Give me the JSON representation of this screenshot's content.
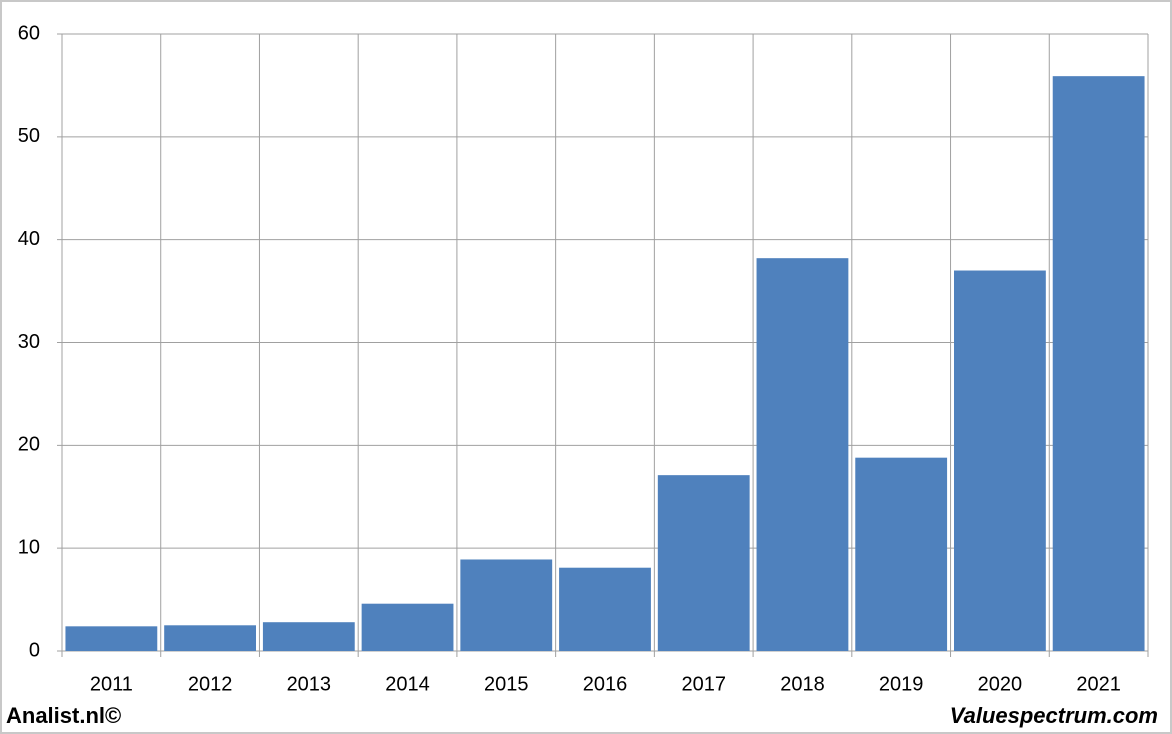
{
  "chart_data": {
    "type": "bar",
    "categories": [
      "2011",
      "2012",
      "2013",
      "2014",
      "2015",
      "2016",
      "2017",
      "2018",
      "2019",
      "2020",
      "2021"
    ],
    "values": [
      2.4,
      2.5,
      2.8,
      4.6,
      8.9,
      8.1,
      17.1,
      38.2,
      18.8,
      37.0,
      55.9
    ],
    "color": "#4f81bd",
    "ylim": [
      0,
      60
    ],
    "yticks": [
      0,
      10,
      20,
      30,
      40,
      50,
      60
    ],
    "grid": true
  },
  "footer": {
    "left": "Analist.nl©",
    "right": "Valuespectrum.com"
  }
}
